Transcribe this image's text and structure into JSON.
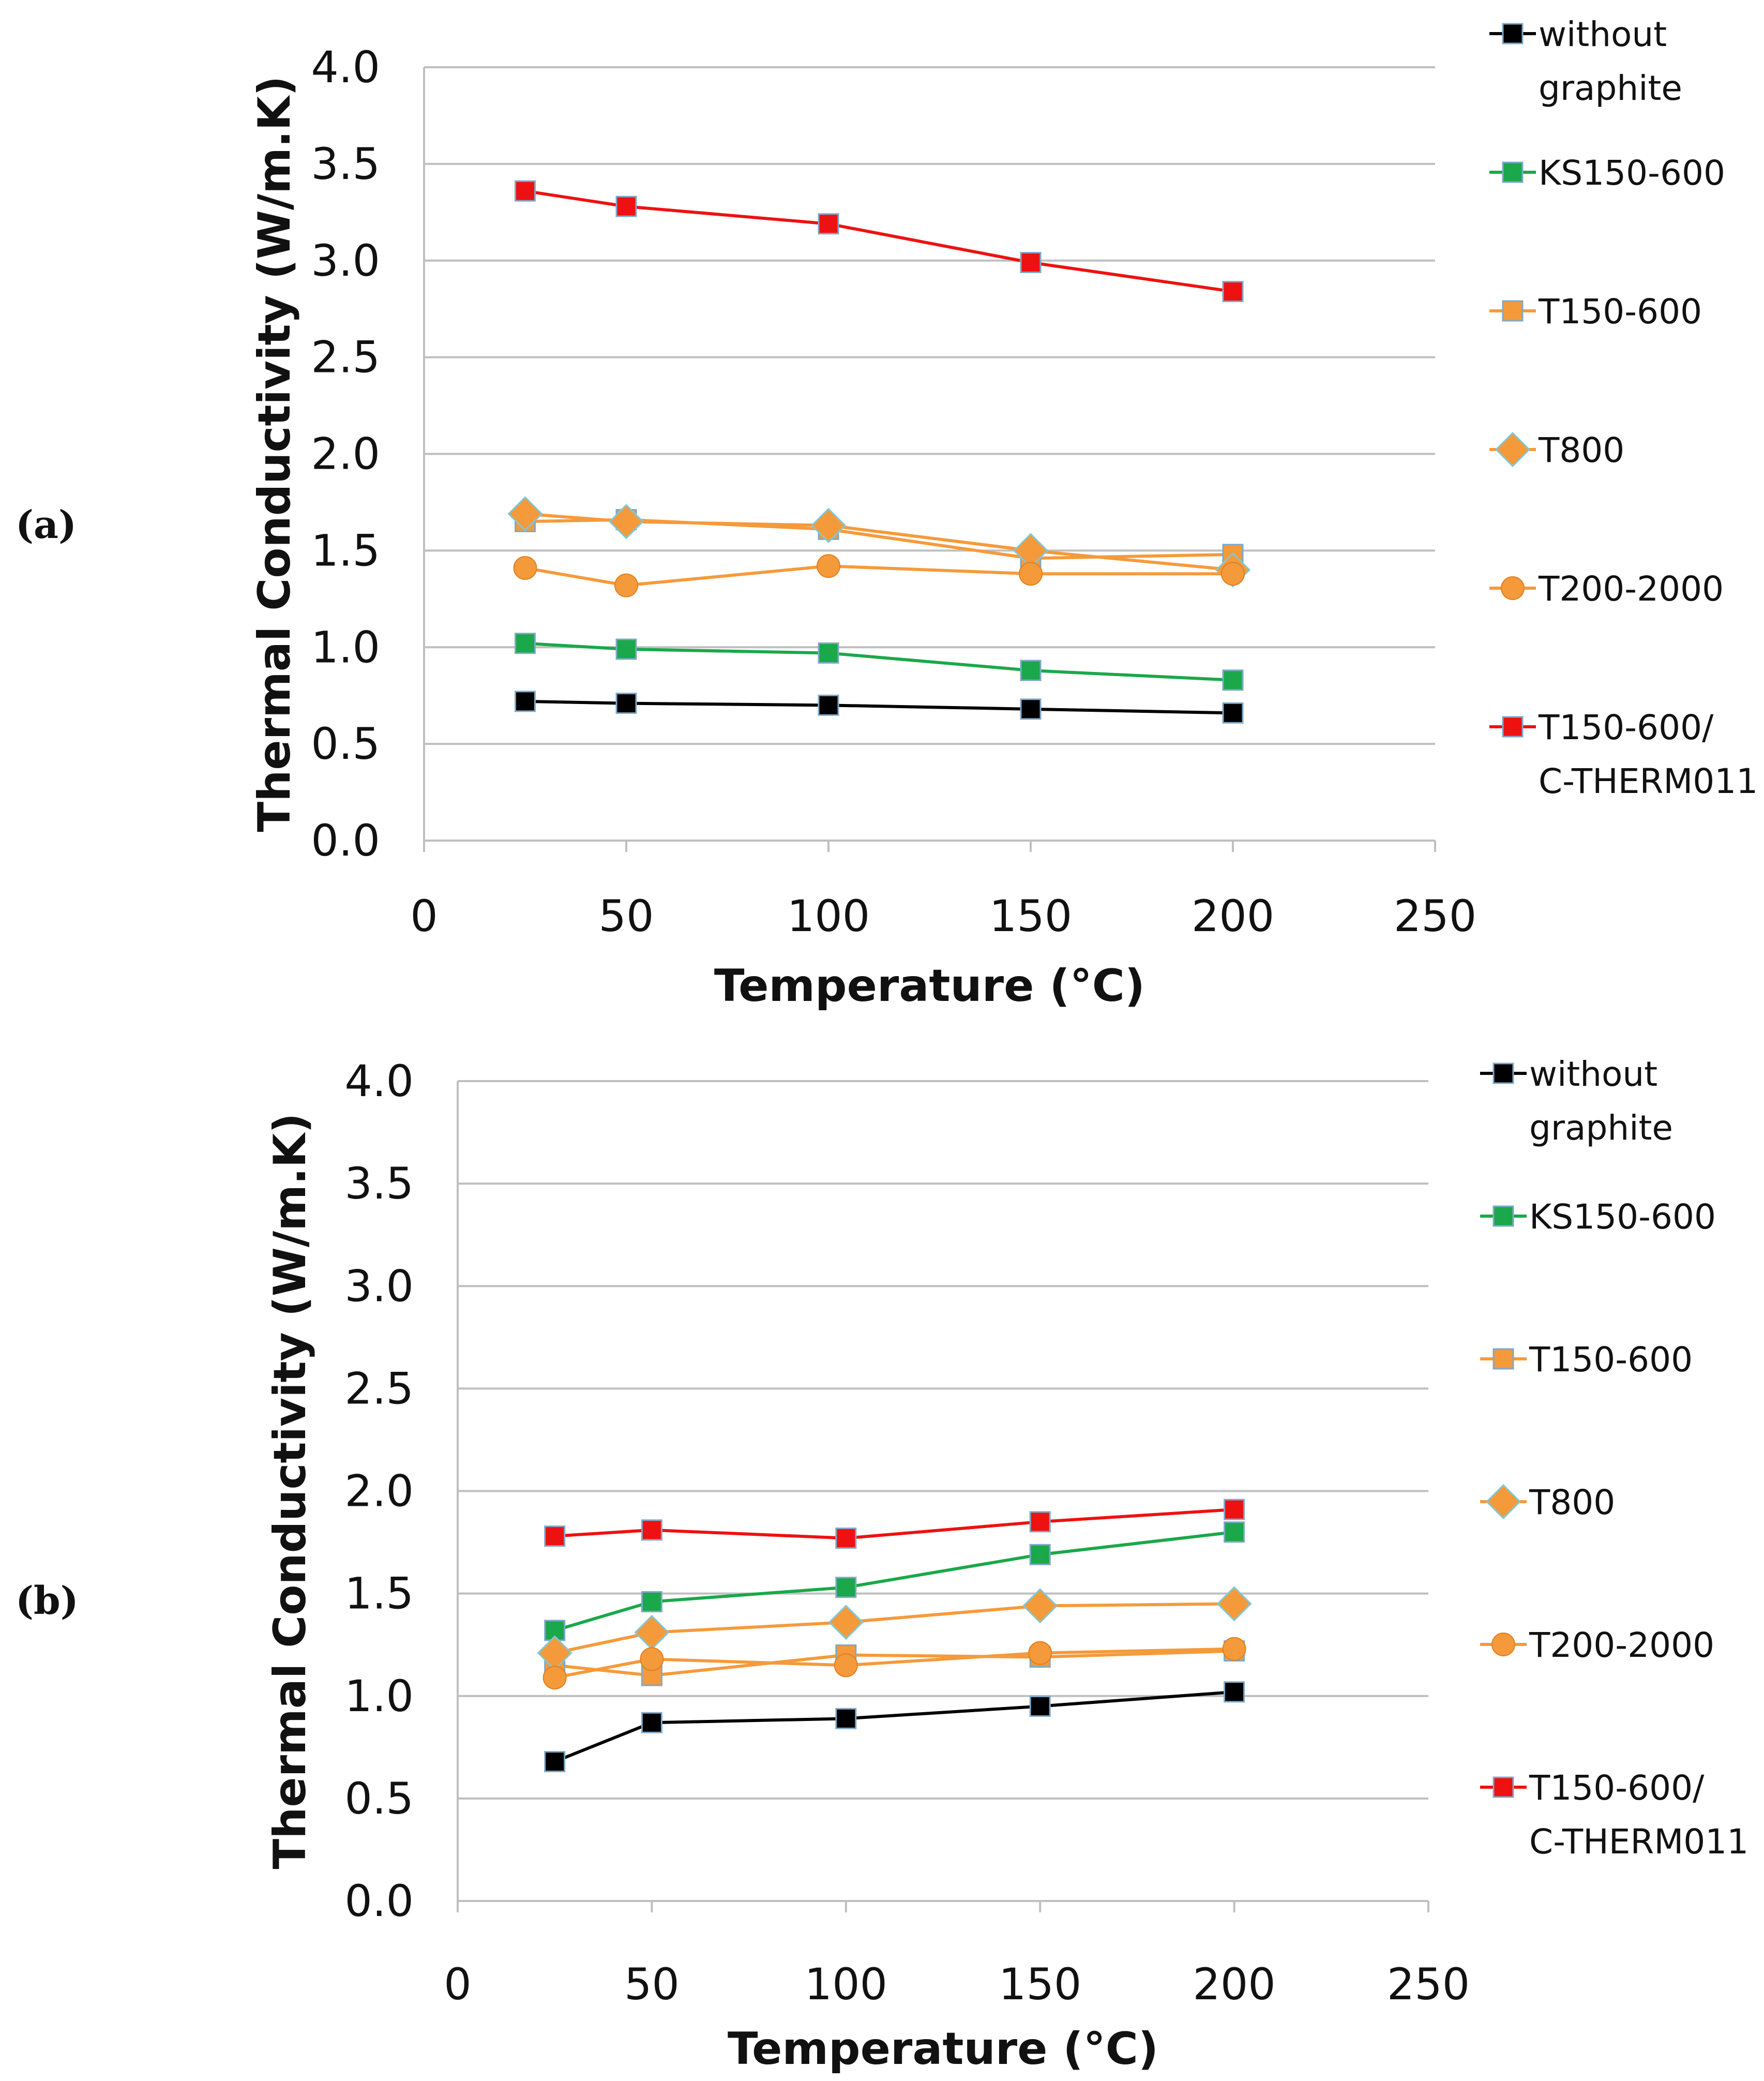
{
  "chart_data": [
    {
      "type": "line",
      "panel_label": "(a)",
      "title": "",
      "xlabel": "Temperature (°C)",
      "ylabel": "Thermal Conductivity (W/m.K)",
      "xlim": [
        0,
        250
      ],
      "ylim": [
        0,
        4.0
      ],
      "xticks": [
        "0",
        "50",
        "100",
        "150",
        "200",
        "250"
      ],
      "yticks": [
        "0.0",
        "0.5",
        "1.0",
        "1.5",
        "2.0",
        "2.5",
        "3.0",
        "3.5",
        "4.0"
      ],
      "x": [
        25,
        50,
        100,
        150,
        200
      ],
      "grid": "horizontal",
      "legend": "right",
      "series": [
        {
          "name": "without graphite",
          "legend_lines": [
            "without",
            "graphite"
          ],
          "color": "#000000",
          "marker": "square",
          "values": [
            0.72,
            0.71,
            0.7,
            0.68,
            0.66
          ]
        },
        {
          "name": "KS150-600",
          "legend_lines": [
            "KS150-600"
          ],
          "color": "#1aa84a",
          "marker": "square",
          "values": [
            1.02,
            0.99,
            0.97,
            0.88,
            0.83
          ]
        },
        {
          "name": "T150-600",
          "legend_lines": [
            "T150-600"
          ],
          "color": "#f59a3a",
          "marker": "square",
          "values": [
            1.65,
            1.66,
            1.61,
            1.46,
            1.48
          ]
        },
        {
          "name": "T800",
          "legend_lines": [
            "T800"
          ],
          "color": "#f59a3a",
          "marker": "diamond",
          "values": [
            1.69,
            1.65,
            1.63,
            1.5,
            1.4
          ]
        },
        {
          "name": "T200-2000",
          "legend_lines": [
            "T200-2000"
          ],
          "color": "#f59a3a",
          "marker": "circle",
          "values": [
            1.41,
            1.32,
            1.42,
            1.38,
            1.38
          ]
        },
        {
          "name": "T150-600/C-THERM011",
          "legend_lines": [
            "T150-600/",
            "C-THERM011"
          ],
          "color": "#ee1111",
          "marker": "square",
          "values": [
            3.36,
            3.28,
            3.19,
            2.99,
            2.84
          ]
        }
      ]
    },
    {
      "type": "line",
      "panel_label": "(b)",
      "title": "",
      "xlabel": "Temperature (°C)",
      "ylabel": "Thermal Conductivity (W/m.K)",
      "xlim": [
        0,
        250
      ],
      "ylim": [
        0,
        4.0
      ],
      "xticks": [
        "0",
        "50",
        "100",
        "150",
        "200",
        "250"
      ],
      "yticks": [
        "0.0",
        "0.5",
        "1.0",
        "1.5",
        "2.0",
        "2.5",
        "3.0",
        "3.5",
        "4.0"
      ],
      "x": [
        25,
        50,
        100,
        150,
        200
      ],
      "grid": "horizontal",
      "legend": "right",
      "series": [
        {
          "name": "without graphite",
          "legend_lines": [
            "without",
            "graphite"
          ],
          "color": "#000000",
          "marker": "square",
          "values": [
            0.68,
            0.87,
            0.89,
            0.95,
            1.02
          ]
        },
        {
          "name": "KS150-600",
          "legend_lines": [
            "KS150-600"
          ],
          "color": "#1aa84a",
          "marker": "square",
          "values": [
            1.32,
            1.46,
            1.53,
            1.69,
            1.8
          ]
        },
        {
          "name": "T150-600",
          "legend_lines": [
            "T150-600"
          ],
          "color": "#f59a3a",
          "marker": "square",
          "values": [
            1.15,
            1.1,
            1.2,
            1.19,
            1.22
          ]
        },
        {
          "name": "T800",
          "legend_lines": [
            "T800"
          ],
          "color": "#f59a3a",
          "marker": "diamond",
          "values": [
            1.21,
            1.31,
            1.36,
            1.44,
            1.45
          ]
        },
        {
          "name": "T200-2000",
          "legend_lines": [
            "T200-2000"
          ],
          "color": "#f59a3a",
          "marker": "circle",
          "values": [
            1.09,
            1.18,
            1.15,
            1.21,
            1.23
          ]
        },
        {
          "name": "T150-600/C-THERM011",
          "legend_lines": [
            "T150-600/",
            "C-THERM011"
          ],
          "color": "#ee1111",
          "marker": "square",
          "values": [
            1.78,
            1.81,
            1.77,
            1.85,
            1.91
          ]
        }
      ]
    }
  ]
}
